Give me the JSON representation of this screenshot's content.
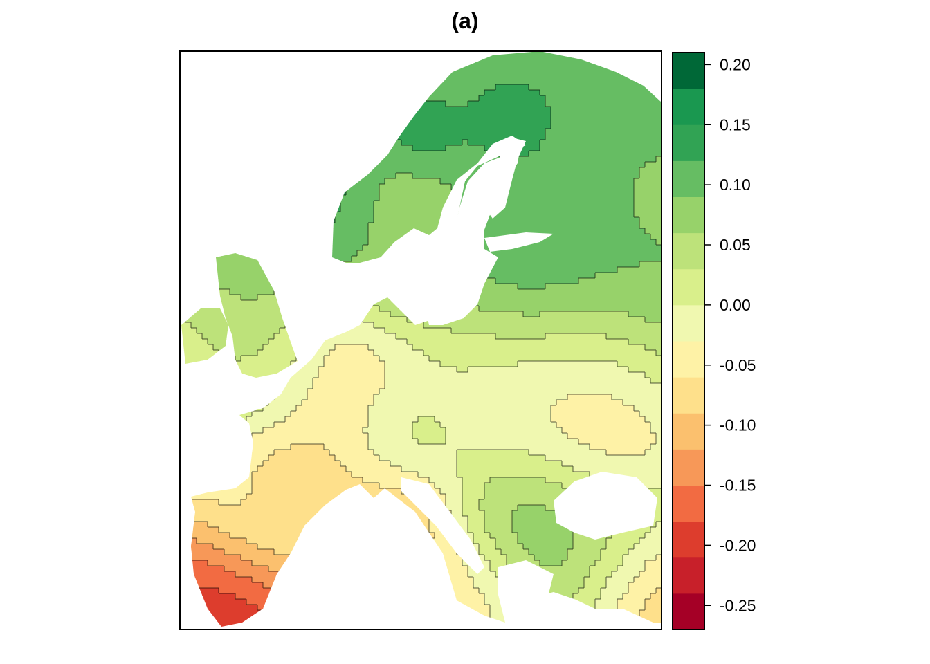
{
  "title": "(a)",
  "colorbar": {
    "min": -0.27,
    "max": 0.21,
    "bins": [
      {
        "from": -0.27,
        "to": -0.24,
        "color": "#A50026"
      },
      {
        "from": -0.24,
        "to": -0.21,
        "color": "#C8202A"
      },
      {
        "from": -0.21,
        "to": -0.18,
        "color": "#DD3D2D"
      },
      {
        "from": -0.18,
        "to": -0.15,
        "color": "#F26B42"
      },
      {
        "from": -0.15,
        "to": -0.12,
        "color": "#F79858"
      },
      {
        "from": -0.12,
        "to": -0.09,
        "color": "#FBC06E"
      },
      {
        "from": -0.09,
        "to": -0.06,
        "color": "#FEE08B"
      },
      {
        "from": -0.06,
        "to": -0.03,
        "color": "#FEF2A6"
      },
      {
        "from": -0.03,
        "to": 0.0,
        "color": "#F0F8B0"
      },
      {
        "from": 0.0,
        "to": 0.03,
        "color": "#D9EF8B"
      },
      {
        "from": 0.03,
        "to": 0.06,
        "color": "#BDE27A"
      },
      {
        "from": 0.06,
        "to": 0.09,
        "color": "#97D26A"
      },
      {
        "from": 0.09,
        "to": 0.12,
        "color": "#66BD63"
      },
      {
        "from": 0.12,
        "to": 0.15,
        "color": "#31A354"
      },
      {
        "from": 0.15,
        "to": 0.18,
        "color": "#1A9850"
      },
      {
        "from": 0.18,
        "to": 0.21,
        "color": "#006837"
      }
    ],
    "ticks": [
      {
        "value": 0.2,
        "label": "0.20"
      },
      {
        "value": 0.15,
        "label": "0.15"
      },
      {
        "value": 0.1,
        "label": "0.10"
      },
      {
        "value": 0.05,
        "label": "0.05"
      },
      {
        "value": 0.0,
        "label": "0.00"
      },
      {
        "value": -0.05,
        "label": "-0.05"
      },
      {
        "value": -0.1,
        "label": "-0.10"
      },
      {
        "value": -0.15,
        "label": "-0.15"
      },
      {
        "value": -0.2,
        "label": "-0.20"
      },
      {
        "value": -0.25,
        "label": "-0.25"
      }
    ]
  },
  "field": {
    "background_value": -0.01,
    "centers": [
      {
        "region": "north-scandinavia",
        "value": 0.12
      },
      {
        "region": "north-norway-coast",
        "value": 0.16
      },
      {
        "region": "lapland",
        "value": 0.16
      },
      {
        "region": "norway-west-coast",
        "value": 0.17
      },
      {
        "region": "south-norway-interior",
        "value": 0.02
      },
      {
        "region": "south-sweden",
        "value": 0.11
      },
      {
        "region": "finland-south",
        "value": 0.17
      },
      {
        "region": "russia-north",
        "value": 0.12
      },
      {
        "region": "karelia",
        "value": 0.07
      },
      {
        "region": "baltics",
        "value": 0.05
      },
      {
        "region": "scotland",
        "value": 0.1
      },
      {
        "region": "england",
        "value": 0.04
      },
      {
        "region": "ireland",
        "value": 0.02
      },
      {
        "region": "germany-west",
        "value": -0.09
      },
      {
        "region": "ukraine-east",
        "value": -0.11
      },
      {
        "region": "poland",
        "value": -0.04
      },
      {
        "region": "austria-czech",
        "value": 0.05
      },
      {
        "region": "romania",
        "value": 0.12
      },
      {
        "region": "turkey-north",
        "value": 0.08
      },
      {
        "region": "south-spain",
        "value": -0.24
      },
      {
        "region": "catalonia",
        "value": -0.12
      },
      {
        "region": "central-spain",
        "value": 0.0
      },
      {
        "region": "italy",
        "value": -0.12
      },
      {
        "region": "anatolia-east",
        "value": -0.17
      },
      {
        "region": "greece",
        "value": -0.06
      },
      {
        "region": "south-france",
        "value": -0.06
      }
    ]
  }
}
